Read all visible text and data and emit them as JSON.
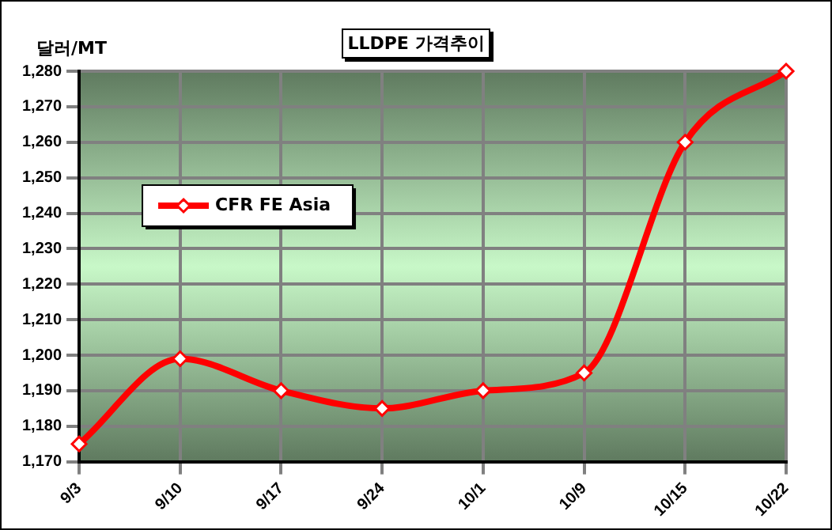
{
  "chart_data": {
    "type": "line",
    "title": "LLDPE 가격추이",
    "ylabel": "달러/MT",
    "categories": [
      "9/3",
      "9/10",
      "9/17",
      "9/24",
      "10/1",
      "10/9",
      "10/15",
      "10/22"
    ],
    "series": [
      {
        "name": "CFR FE Asia",
        "color": "#ff0000",
        "values": [
          1175,
          1199,
          1190,
          1185,
          1190,
          1195,
          1260,
          1280
        ]
      }
    ],
    "ylim": [
      1170,
      1280
    ],
    "yticks": [
      {
        "value": 1170,
        "label": "1,170"
      },
      {
        "value": 1180,
        "label": "1,180"
      },
      {
        "value": 1190,
        "label": "1,190"
      },
      {
        "value": 1200,
        "label": "1,200"
      },
      {
        "value": 1210,
        "label": "1,210"
      },
      {
        "value": 1220,
        "label": "1,220"
      },
      {
        "value": 1230,
        "label": "1,230"
      },
      {
        "value": 1240,
        "label": "1,240"
      },
      {
        "value": 1250,
        "label": "1,250"
      },
      {
        "value": 1260,
        "label": "1,260"
      },
      {
        "value": 1270,
        "label": "1,270"
      },
      {
        "value": 1280,
        "label": "1,280"
      }
    ],
    "grid": true,
    "legend": "top left",
    "marker": "diamond",
    "line_style": "solid"
  }
}
